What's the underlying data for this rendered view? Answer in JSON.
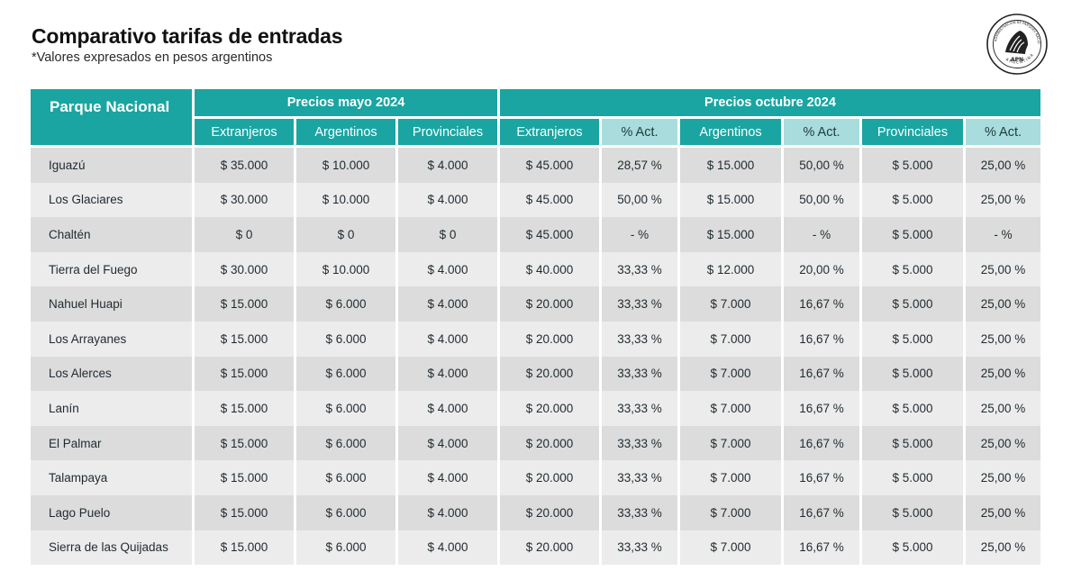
{
  "header": {
    "title": "Comparativo tarifas de entradas",
    "subtitle": "*Valores expresados en pesos argentinos"
  },
  "logo": {
    "icon": "apn-logo-icon",
    "text": "APN",
    "ring_text": "ADMINISTRACIÓN DE PARQUES NACIONALES · ARGENTINA"
  },
  "table": {
    "park_header": "Parque Nacional",
    "group_may": "Precios mayo 2024",
    "group_oct": "Precios octubre 2024",
    "columns_may": [
      "Extranjeros",
      "Argentinos",
      "Provinciales"
    ],
    "columns_oct": [
      "Extranjeros",
      "% Act.",
      "Argentinos",
      "% Act.",
      "Provinciales",
      "% Act."
    ],
    "rows": [
      {
        "park": "Iguazú",
        "cells": [
          "$ 35.000",
          "$ 10.000",
          "$ 4.000",
          "$ 45.000",
          "28,57 %",
          "$ 15.000",
          "50,00 %",
          "$ 5.000",
          "25,00 %"
        ]
      },
      {
        "park": "Los Glaciares",
        "cells": [
          "$ 30.000",
          "$ 10.000",
          "$ 4.000",
          "$ 45.000",
          "50,00 %",
          "$ 15.000",
          "50,00 %",
          "$ 5.000",
          "25,00 %"
        ]
      },
      {
        "park": "Chaltén",
        "cells": [
          "$ 0",
          "$ 0",
          "$ 0",
          "$ 45.000",
          "- %",
          "$ 15.000",
          "- %",
          "$ 5.000",
          "- %"
        ]
      },
      {
        "park": "Tierra del Fuego",
        "cells": [
          "$ 30.000",
          "$ 10.000",
          "$ 4.000",
          "$ 40.000",
          "33,33 %",
          "$ 12.000",
          "20,00 %",
          "$ 5.000",
          "25,00 %"
        ]
      },
      {
        "park": "Nahuel Huapi",
        "cells": [
          "$ 15.000",
          "$ 6.000",
          "$ 4.000",
          "$ 20.000",
          "33,33 %",
          "$ 7.000",
          "16,67 %",
          "$ 5.000",
          "25,00 %"
        ]
      },
      {
        "park": "Los Arrayanes",
        "cells": [
          "$ 15.000",
          "$ 6.000",
          "$ 4.000",
          "$ 20.000",
          "33,33 %",
          "$ 7.000",
          "16,67 %",
          "$ 5.000",
          "25,00 %"
        ]
      },
      {
        "park": "Los Alerces",
        "cells": [
          "$ 15.000",
          "$ 6.000",
          "$ 4.000",
          "$ 20.000",
          "33,33 %",
          "$ 7.000",
          "16,67 %",
          "$ 5.000",
          "25,00 %"
        ]
      },
      {
        "park": "Lanín",
        "cells": [
          "$ 15.000",
          "$ 6.000",
          "$ 4.000",
          "$ 20.000",
          "33,33 %",
          "$ 7.000",
          "16,67 %",
          "$ 5.000",
          "25,00 %"
        ]
      },
      {
        "park": "El Palmar",
        "cells": [
          "$ 15.000",
          "$ 6.000",
          "$ 4.000",
          "$ 20.000",
          "33,33 %",
          "$ 7.000",
          "16,67 %",
          "$ 5.000",
          "25,00 %"
        ]
      },
      {
        "park": "Talampaya",
        "cells": [
          "$ 15.000",
          "$ 6.000",
          "$ 4.000",
          "$ 20.000",
          "33,33 %",
          "$ 7.000",
          "16,67 %",
          "$ 5.000",
          "25,00 %"
        ]
      },
      {
        "park": "Lago Puelo",
        "cells": [
          "$ 15.000",
          "$ 6.000",
          "$ 4.000",
          "$ 20.000",
          "33,33 %",
          "$ 7.000",
          "16,67 %",
          "$ 5.000",
          "25,00 %"
        ]
      },
      {
        "park": "Sierra de las Quijadas",
        "cells": [
          "$ 15.000",
          "$ 6.000",
          "$ 4.000",
          "$ 20.000",
          "33,33 %",
          "$ 7.000",
          "16,67 %",
          "$ 5.000",
          "25,00 %"
        ]
      }
    ]
  },
  "colors": {
    "header_teal": "#1aa5a2",
    "act_header": "#a9dcdc",
    "row_dark": "#dcdcdc",
    "row_light": "#ececec"
  }
}
